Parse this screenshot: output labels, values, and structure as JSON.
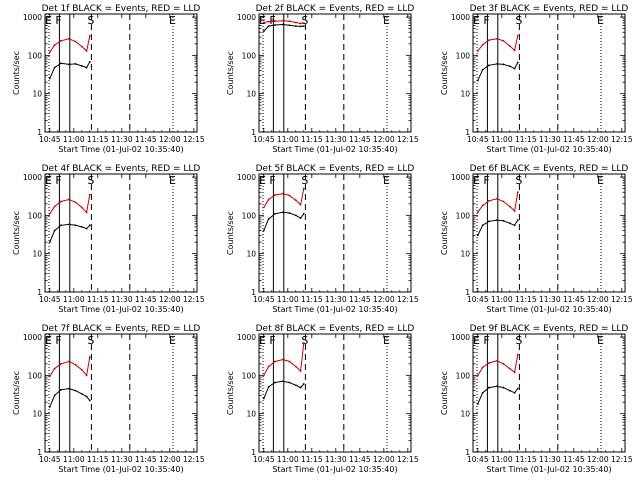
{
  "colors": {
    "events": "#000000",
    "lld": "#cc0000",
    "background": "#ffffff"
  },
  "shared": {
    "xlabel": "Start Time (01-Jul-02 10:35:40)",
    "ylabel": "Counts/sec",
    "xtick_labels": [
      "10:45",
      "11:00",
      "11:15",
      "11:30",
      "11:45",
      "12:00",
      "12:15"
    ],
    "ytick_labels": [
      "1",
      "10",
      "100",
      "1000"
    ]
  },
  "chart_data": [
    {
      "type": "line",
      "title": "Det 1f BLACK = Events, RED = LLD",
      "xlabel": "Start Time (01-Jul-02 10:35:40)",
      "ylabel": "Counts/sec",
      "xlim": [
        "10:42",
        "12:17"
      ],
      "ylim": [
        1,
        1200
      ],
      "yscale": "log",
      "markers": [
        {
          "label": "E",
          "time": "10:44.5",
          "style": "dotted"
        },
        {
          "label": "F",
          "time": "10:51",
          "style": "solid"
        },
        {
          "label": "",
          "time": "10:57.5",
          "style": "solid"
        },
        {
          "label": "S",
          "time": "11:11",
          "style": "dashed"
        },
        {
          "label": "",
          "time": "11:35",
          "style": "dashed"
        },
        {
          "label": "E",
          "time": "12:02",
          "style": "dotted"
        }
      ],
      "series": [
        {
          "name": "Events",
          "x": [
            "10:45",
            "10:48",
            "10:52",
            "10:57",
            "11:01",
            "11:05",
            "11:08",
            "11:10"
          ],
          "y": [
            25,
            48,
            62,
            58,
            60,
            53,
            48,
            68
          ]
        },
        {
          "name": "LLD",
          "x": [
            "10:45",
            "10:48",
            "10:52",
            "10:57",
            "11:01",
            "11:05",
            "11:08",
            "11:10"
          ],
          "y": [
            120,
            185,
            240,
            270,
            230,
            170,
            130,
            320
          ]
        }
      ]
    },
    {
      "type": "line",
      "title": "Det 2f BLACK = Events, RED = LLD",
      "xlabel": "Start Time (01-Jul-02 10:35:40)",
      "ylabel": "Counts/sec",
      "xlim": [
        "10:42",
        "12:17"
      ],
      "ylim": [
        1,
        1200
      ],
      "yscale": "log",
      "markers": [
        {
          "label": "E",
          "time": "10:44.5",
          "style": "dotted"
        },
        {
          "label": "F",
          "time": "10:51",
          "style": "solid"
        },
        {
          "label": "",
          "time": "10:57.5",
          "style": "solid"
        },
        {
          "label": "S",
          "time": "11:11",
          "style": "dashed"
        },
        {
          "label": "",
          "time": "11:35",
          "style": "dashed"
        },
        {
          "label": "E",
          "time": "12:02",
          "style": "dotted"
        }
      ],
      "series": [
        {
          "name": "Events",
          "x": [
            "10:45",
            "10:48",
            "10:52",
            "10:57",
            "11:01",
            "11:05",
            "11:08",
            "11:10"
          ],
          "y": [
            430,
            580,
            620,
            640,
            610,
            580,
            570,
            580
          ]
        },
        {
          "name": "LLD",
          "x": [
            "10:45",
            "10:48",
            "10:52",
            "10:57",
            "11:01",
            "11:05",
            "11:08",
            "11:10"
          ],
          "y": [
            720,
            760,
            780,
            800,
            780,
            720,
            680,
            700
          ]
        }
      ]
    },
    {
      "type": "line",
      "title": "Det 3f BLACK = Events, RED = LLD",
      "xlabel": "Start Time (01-Jul-02 10:35:40)",
      "ylabel": "Counts/sec",
      "xlim": [
        "10:42",
        "12:17"
      ],
      "ylim": [
        1,
        1200
      ],
      "yscale": "log",
      "markers": [
        {
          "label": "E",
          "time": "10:44.5",
          "style": "dotted"
        },
        {
          "label": "F",
          "time": "10:51",
          "style": "solid"
        },
        {
          "label": "",
          "time": "10:57.5",
          "style": "solid"
        },
        {
          "label": "S",
          "time": "11:11",
          "style": "dashed"
        },
        {
          "label": "",
          "time": "11:35",
          "style": "dashed"
        },
        {
          "label": "E",
          "time": "12:02",
          "style": "dotted"
        }
      ],
      "series": [
        {
          "name": "Events",
          "x": [
            "10:45",
            "10:48",
            "10:52",
            "10:57",
            "11:01",
            "11:05",
            "11:08",
            "11:10"
          ],
          "y": [
            22,
            42,
            55,
            60,
            58,
            52,
            45,
            65
          ]
        },
        {
          "name": "LLD",
          "x": [
            "10:45",
            "10:48",
            "10:52",
            "10:57",
            "11:01",
            "11:05",
            "11:08",
            "11:10"
          ],
          "y": [
            130,
            190,
            250,
            270,
            240,
            175,
            135,
            330
          ]
        }
      ]
    },
    {
      "type": "line",
      "title": "Det 4f BLACK = Events, RED = LLD",
      "xlabel": "Start Time (01-Jul-02 10:35:40)",
      "ylabel": "Counts/sec",
      "xlim": [
        "10:42",
        "12:17"
      ],
      "ylim": [
        1,
        1200
      ],
      "yscale": "log",
      "markers": [
        {
          "label": "E",
          "time": "10:44.5",
          "style": "dotted"
        },
        {
          "label": "F",
          "time": "10:51",
          "style": "solid"
        },
        {
          "label": "",
          "time": "10:57.5",
          "style": "solid"
        },
        {
          "label": "S",
          "time": "11:11",
          "style": "dashed"
        },
        {
          "label": "",
          "time": "11:35",
          "style": "dashed"
        },
        {
          "label": "E",
          "time": "12:02",
          "style": "dotted"
        }
      ],
      "series": [
        {
          "name": "Events",
          "x": [
            "10:45",
            "10:48",
            "10:52",
            "10:57",
            "11:01",
            "11:05",
            "11:08",
            "11:10"
          ],
          "y": [
            20,
            40,
            55,
            58,
            55,
            50,
            45,
            55
          ]
        },
        {
          "name": "LLD",
          "x": [
            "10:45",
            "10:48",
            "10:52",
            "10:57",
            "11:01",
            "11:05",
            "11:08",
            "11:10"
          ],
          "y": [
            110,
            170,
            230,
            260,
            220,
            160,
            120,
            350
          ]
        }
      ]
    },
    {
      "type": "line",
      "title": "Det 5f BLACK = Events, RED = LLD",
      "xlabel": "Start Time (01-Jul-02 10:35:40)",
      "ylabel": "Counts/sec",
      "xlim": [
        "10:42",
        "12:17"
      ],
      "ylim": [
        1,
        1200
      ],
      "yscale": "log",
      "markers": [
        {
          "label": "E",
          "time": "10:44.5",
          "style": "dotted"
        },
        {
          "label": "F",
          "time": "10:51",
          "style": "solid"
        },
        {
          "label": "",
          "time": "10:57.5",
          "style": "solid"
        },
        {
          "label": "S",
          "time": "11:11",
          "style": "dashed"
        },
        {
          "label": "",
          "time": "11:35",
          "style": "dashed"
        },
        {
          "label": "E",
          "time": "12:02",
          "style": "dotted"
        }
      ],
      "series": [
        {
          "name": "Events",
          "x": [
            "10:45",
            "10:48",
            "10:52",
            "10:57",
            "11:01",
            "11:05",
            "11:08",
            "11:10"
          ],
          "y": [
            40,
            80,
            110,
            120,
            115,
            100,
            85,
            110
          ]
        },
        {
          "name": "LLD",
          "x": [
            "10:45",
            "10:48",
            "10:52",
            "10:57",
            "11:01",
            "11:05",
            "11:08",
            "11:10"
          ],
          "y": [
            160,
            260,
            340,
            370,
            330,
            250,
            190,
            500
          ]
        }
      ]
    },
    {
      "type": "line",
      "title": "Det 6f BLACK = Events, RED = LLD",
      "xlabel": "Start Time (01-Jul-02 10:35:40)",
      "ylabel": "Counts/sec",
      "xlim": [
        "10:42",
        "12:17"
      ],
      "ylim": [
        1,
        1200
      ],
      "yscale": "log",
      "markers": [
        {
          "label": "E",
          "time": "10:44.5",
          "style": "dotted"
        },
        {
          "label": "F",
          "time": "10:51",
          "style": "solid"
        },
        {
          "label": "",
          "time": "10:57.5",
          "style": "solid"
        },
        {
          "label": "S",
          "time": "11:11",
          "style": "dashed"
        },
        {
          "label": "",
          "time": "11:35",
          "style": "dashed"
        },
        {
          "label": "E",
          "time": "12:02",
          "style": "dotted"
        }
      ],
      "series": [
        {
          "name": "Events",
          "x": [
            "10:45",
            "10:48",
            "10:52",
            "10:57",
            "11:01",
            "11:05",
            "11:08",
            "11:10"
          ],
          "y": [
            30,
            55,
            70,
            75,
            72,
            62,
            55,
            75
          ]
        },
        {
          "name": "LLD",
          "x": [
            "10:45",
            "10:48",
            "10:52",
            "10:57",
            "11:01",
            "11:05",
            "11:08",
            "11:10"
          ],
          "y": [
            120,
            180,
            240,
            270,
            230,
            170,
            130,
            400
          ]
        }
      ]
    },
    {
      "type": "line",
      "title": "Det 7f BLACK = Events, RED = LLD",
      "xlabel": "Start Time (01-Jul-02 10:35:40)",
      "ylabel": "Counts/sec",
      "xlim": [
        "10:42",
        "12:17"
      ],
      "ylim": [
        1,
        1200
      ],
      "yscale": "log",
      "markers": [
        {
          "label": "E",
          "time": "10:44.5",
          "style": "dotted"
        },
        {
          "label": "F",
          "time": "10:51",
          "style": "solid"
        },
        {
          "label": "",
          "time": "10:57.5",
          "style": "solid"
        },
        {
          "label": "S",
          "time": "11:11",
          "style": "dashed"
        },
        {
          "label": "",
          "time": "11:35",
          "style": "dashed"
        },
        {
          "label": "E",
          "time": "12:02",
          "style": "dotted"
        }
      ],
      "series": [
        {
          "name": "Events",
          "x": [
            "10:45",
            "10:48",
            "10:52",
            "10:57",
            "11:01",
            "11:05",
            "11:08",
            "11:10"
          ],
          "y": [
            15,
            30,
            42,
            45,
            40,
            33,
            28,
            22
          ]
        },
        {
          "name": "LLD",
          "x": [
            "10:45",
            "10:48",
            "10:52",
            "10:57",
            "11:01",
            "11:05",
            "11:08",
            "11:10"
          ],
          "y": [
            95,
            150,
            200,
            230,
            190,
            140,
            100,
            300
          ]
        }
      ]
    },
    {
      "type": "line",
      "title": "Det 8f BLACK = Events, RED = LLD",
      "xlabel": "Start Time (01-Jul-02 10:35:40)",
      "ylabel": "Counts/sec",
      "xlim": [
        "10:42",
        "12:17"
      ],
      "ylim": [
        1,
        1200
      ],
      "yscale": "log",
      "markers": [
        {
          "label": "E",
          "time": "10:44.5",
          "style": "dotted"
        },
        {
          "label": "F",
          "time": "10:51",
          "style": "solid"
        },
        {
          "label": "",
          "time": "10:57.5",
          "style": "solid"
        },
        {
          "label": "S",
          "time": "11:11",
          "style": "dashed"
        },
        {
          "label": "",
          "time": "11:35",
          "style": "dashed"
        },
        {
          "label": "E",
          "time": "12:02",
          "style": "dotted"
        }
      ],
      "series": [
        {
          "name": "Events",
          "x": [
            "10:45",
            "10:48",
            "10:52",
            "10:57",
            "11:01",
            "11:05",
            "11:08",
            "11:10"
          ],
          "y": [
            25,
            50,
            65,
            70,
            65,
            55,
            48,
            60
          ]
        },
        {
          "name": "LLD",
          "x": [
            "10:45",
            "10:48",
            "10:52",
            "10:57",
            "11:01",
            "11:05",
            "11:08",
            "11:10"
          ],
          "y": [
            100,
            170,
            230,
            260,
            230,
            170,
            130,
            700
          ]
        }
      ]
    },
    {
      "type": "line",
      "title": "Det 9f BLACK = Events, RED = LLD",
      "xlabel": "Start Time (01-Jul-02 10:35:40)",
      "ylabel": "Counts/sec",
      "xlim": [
        "10:42",
        "12:17"
      ],
      "ylim": [
        1,
        1200
      ],
      "yscale": "log",
      "markers": [
        {
          "label": "E",
          "time": "10:44.5",
          "style": "dotted"
        },
        {
          "label": "F",
          "time": "10:51",
          "style": "solid"
        },
        {
          "label": "",
          "time": "10:57.5",
          "style": "solid"
        },
        {
          "label": "S",
          "time": "11:11",
          "style": "dashed"
        },
        {
          "label": "",
          "time": "11:35",
          "style": "dashed"
        },
        {
          "label": "E",
          "time": "12:02",
          "style": "dotted"
        }
      ],
      "series": [
        {
          "name": "Events",
          "x": [
            "10:45",
            "10:48",
            "10:52",
            "10:57",
            "11:01",
            "11:05",
            "11:08",
            "11:10"
          ],
          "y": [
            18,
            35,
            48,
            52,
            48,
            40,
            35,
            45
          ]
        },
        {
          "name": "LLD",
          "x": [
            "10:45",
            "10:48",
            "10:52",
            "10:57",
            "11:01",
            "11:05",
            "11:08",
            "11:10"
          ],
          "y": [
            100,
            160,
            210,
            240,
            200,
            150,
            120,
            350
          ]
        }
      ]
    }
  ]
}
